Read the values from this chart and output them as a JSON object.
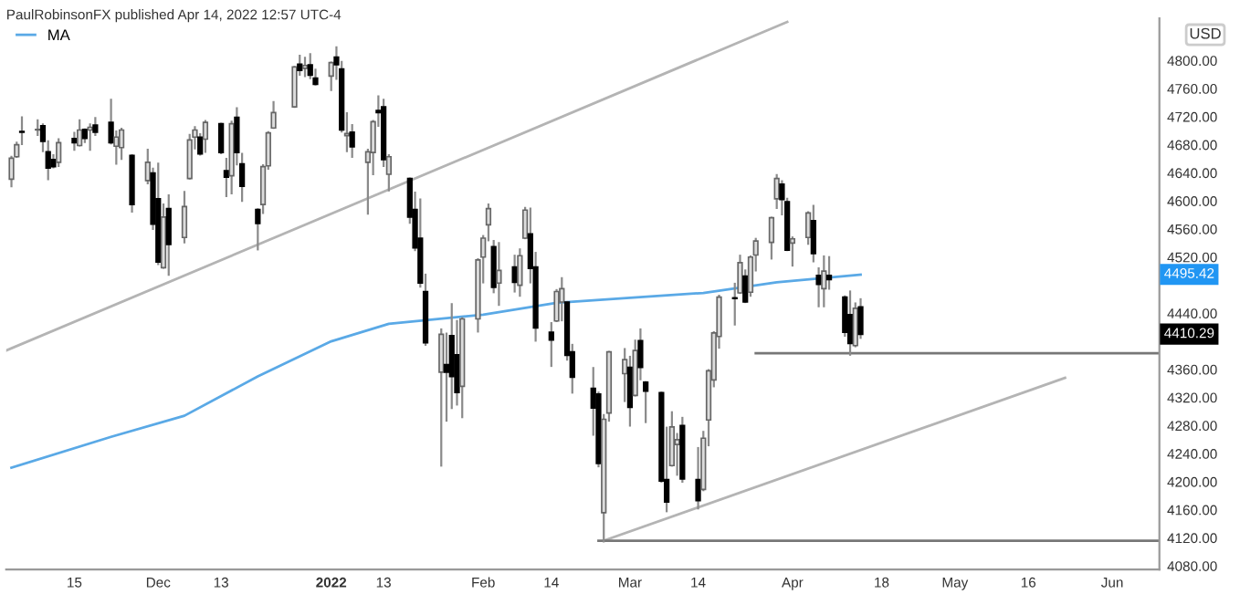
{
  "chart_data": {
    "type": "candlestick",
    "annotations": [
      "PaulRobinsonFX published Apr 14, 2022 12:57 UTC-4",
      "USD",
      {
        "text": "4495.42",
        "y": 4495.42
      },
      {
        "text": "4410.29",
        "y": 4410.29
      }
    ],
    "x": [
      "2021-11-03",
      "2021-11-04",
      "2021-11-05",
      "2021-11-08",
      "2021-11-09",
      "2021-11-10",
      "2021-11-11",
      "2021-11-12",
      "2021-11-15",
      "2021-11-16",
      "2021-11-17",
      "2021-11-18",
      "2021-11-19",
      "2021-11-22",
      "2021-11-23",
      "2021-11-24",
      "2021-11-26",
      "2021-11-29",
      "2021-11-30",
      "2021-12-01",
      "2021-12-02",
      "2021-12-03",
      "2021-12-06",
      "2021-12-07",
      "2021-12-08",
      "2021-12-09",
      "2021-12-10",
      "2021-12-13",
      "2021-12-14",
      "2021-12-15",
      "2021-12-16",
      "2021-12-17",
      "2021-12-20",
      "2021-12-21",
      "2021-12-22",
      "2021-12-23",
      "2021-12-27",
      "2021-12-28",
      "2021-12-29",
      "2021-12-30",
      "2021-12-31",
      "2022-01-03",
      "2022-01-04",
      "2022-01-05",
      "2022-01-06",
      "2022-01-07",
      "2022-01-10",
      "2022-01-11",
      "2022-01-12",
      "2022-01-13",
      "2022-01-14",
      "2022-01-18",
      "2022-01-19",
      "2022-01-20",
      "2022-01-21",
      "2022-01-24",
      "2022-01-25",
      "2022-01-26",
      "2022-01-27",
      "2022-01-28",
      "2022-01-31",
      "2022-02-01",
      "2022-02-02",
      "2022-02-03",
      "2022-02-04",
      "2022-02-07",
      "2022-02-08",
      "2022-02-09",
      "2022-02-10",
      "2022-02-11",
      "2022-02-14",
      "2022-02-15",
      "2022-02-16",
      "2022-02-17",
      "2022-02-18",
      "2022-02-22",
      "2022-02-23",
      "2022-02-24",
      "2022-02-25",
      "2022-02-28",
      "2022-03-01",
      "2022-03-02",
      "2022-03-03",
      "2022-03-04",
      "2022-03-07",
      "2022-03-08",
      "2022-03-09",
      "2022-03-10",
      "2022-03-11",
      "2022-03-14",
      "2022-03-15",
      "2022-03-16",
      "2022-03-17",
      "2022-03-18",
      "2022-03-21",
      "2022-03-22",
      "2022-03-23",
      "2022-03-24",
      "2022-03-25",
      "2022-03-28",
      "2022-03-29",
      "2022-03-30",
      "2022-03-31",
      "2022-04-01",
      "2022-04-04",
      "2022-04-05",
      "2022-04-06",
      "2022-04-07",
      "2022-04-08",
      "2022-04-11",
      "2022-04-12",
      "2022-04-13",
      "2022-04-14"
    ],
    "ohlc": [
      [
        4631,
        4663,
        4621,
        4661
      ],
      [
        4663,
        4683,
        4663,
        4680
      ],
      [
        4699,
        4719,
        4681,
        4698
      ],
      [
        4701,
        4715,
        4694,
        4702
      ],
      [
        4707,
        4709,
        4671,
        4685
      ],
      [
        4670,
        4685,
        4631,
        4647
      ],
      [
        4659,
        4665,
        4648,
        4649
      ],
      [
        4655,
        4688,
        4650,
        4683
      ],
      [
        4689,
        4697,
        4673,
        4683
      ],
      [
        4679,
        4715,
        4679,
        4701
      ],
      [
        4702,
        4702,
        4684,
        4689
      ],
      [
        4701,
        4709,
        4673,
        4705
      ],
      [
        4708,
        4718,
        4694,
        4698
      ],
      [
        4712,
        4744,
        4682,
        4683
      ],
      [
        4678,
        4699,
        4653,
        4691
      ],
      [
        4676,
        4703,
        4660,
        4701
      ],
      [
        4665,
        4665,
        4585,
        4595
      ],
      [
        4629,
        4673,
        4625,
        4655
      ],
      [
        4640,
        4646,
        4560,
        4567
      ],
      [
        4603,
        4653,
        4510,
        4513
      ],
      [
        4505,
        4595,
        4505,
        4577
      ],
      [
        4589,
        4608,
        4495,
        4538
      ],
      [
        4548,
        4613,
        4541,
        4592
      ],
      [
        4632,
        4694,
        4632,
        4687
      ],
      [
        4691,
        4705,
        4675,
        4701
      ],
      [
        4691,
        4695,
        4666,
        4667
      ],
      [
        4688,
        4714,
        4670,
        4712
      ],
      [
        4710,
        4710,
        4668,
        4669
      ],
      [
        4643,
        4660,
        4607,
        4634
      ],
      [
        4636,
        4713,
        4611,
        4710
      ],
      [
        4719,
        4732,
        4652,
        4669
      ],
      [
        4653,
        4667,
        4600,
        4621
      ],
      [
        4588,
        4588,
        4531,
        4568
      ],
      [
        4595,
        4651,
        4583,
        4649
      ],
      [
        4650,
        4698,
        4646,
        4697
      ],
      [
        4704,
        4741,
        4704,
        4726
      ],
      [
        4734,
        4791,
        4734,
        4791
      ],
      [
        4795,
        4807,
        4780,
        4786
      ],
      [
        4789,
        4804,
        4778,
        4793
      ],
      [
        4794,
        4809,
        4775,
        4779
      ],
      [
        4775,
        4787,
        4766,
        4766
      ],
      [
        4778,
        4797,
        4758,
        4797
      ],
      [
        4805,
        4819,
        4774,
        4794
      ],
      [
        4788,
        4798,
        4699,
        4701
      ],
      [
        4693,
        4725,
        4671,
        4696
      ],
      [
        4698,
        4708,
        4663,
        4677
      ],
      [
        4655,
        4673,
        4582,
        4670
      ],
      [
        4669,
        4714,
        4638,
        4713
      ],
      [
        4729,
        4749,
        4707,
        4726
      ],
      [
        4734,
        4744,
        4650,
        4659
      ],
      [
        4638,
        4665,
        4615,
        4663
      ],
      [
        4632,
        4632,
        4569,
        4577
      ],
      [
        4588,
        4612,
        4530,
        4533
      ],
      [
        4547,
        4602,
        4478,
        4483
      ],
      [
        4471,
        4495,
        4395,
        4398
      ],
      [
        4356,
        4417,
        4223,
        4410
      ],
      [
        4367,
        4411,
        4287,
        4356
      ],
      [
        4408,
        4453,
        4305,
        4350
      ],
      [
        4381,
        4429,
        4310,
        4327
      ],
      [
        4336,
        4433,
        4292,
        4432
      ],
      [
        4432,
        4517,
        4414,
        4516
      ],
      [
        4520,
        4550,
        4484,
        4547
      ],
      [
        4566,
        4595,
        4544,
        4589
      ],
      [
        4535,
        4543,
        4470,
        4477
      ],
      [
        4483,
        4540,
        4452,
        4501
      ],
      [
        4506,
        4522,
        4471,
        4484
      ],
      [
        4480,
        4531,
        4465,
        4522
      ],
      [
        4547,
        4590,
        4547,
        4587
      ],
      [
        4553,
        4589,
        4484,
        4504
      ],
      [
        4506,
        4526,
        4401,
        4419
      ],
      [
        4413,
        4426,
        4365,
        4402
      ],
      [
        4429,
        4473,
        4429,
        4471
      ],
      [
        4456,
        4490,
        4430,
        4475
      ],
      [
        4456,
        4456,
        4374,
        4380
      ],
      [
        4385,
        4395,
        4327,
        4349
      ],
      [
        4333,
        4362,
        4267,
        4305
      ],
      [
        4325,
        4327,
        4222,
        4226
      ],
      [
        4156,
        4295,
        4115,
        4289
      ],
      [
        4298,
        4385,
        4287,
        4385
      ],
      [
        4354,
        4389,
        4315,
        4374
      ],
      [
        4363,
        4378,
        4280,
        4306
      ],
      [
        4323,
        4401,
        4323,
        4387
      ],
      [
        4401,
        4417,
        4346,
        4363
      ],
      [
        4342,
        4342,
        4285,
        4329
      ],
      [
        4327,
        4327,
        4200,
        4201
      ],
      [
        4203,
        4277,
        4158,
        4171
      ],
      [
        4223,
        4299,
        4223,
        4278
      ],
      [
        4253,
        4268,
        4210,
        4260
      ],
      [
        4280,
        4291,
        4200,
        4204
      ],
      [
        4203,
        4248,
        4162,
        4173
      ],
      [
        4189,
        4271,
        4188,
        4262
      ],
      [
        4288,
        4359,
        4252,
        4358
      ],
      [
        4345,
        4413,
        4336,
        4412
      ],
      [
        4407,
        4465,
        4391,
        4463
      ],
      [
        4462,
        4482,
        4424,
        4461
      ],
      [
        4469,
        4522,
        4469,
        4512
      ],
      [
        4493,
        4501,
        4456,
        4456
      ],
      [
        4470,
        4521,
        4465,
        4520
      ],
      [
        4523,
        4546,
        4501,
        4543
      ],
      [
        4541,
        4576,
        4518,
        4576
      ],
      [
        4603,
        4637,
        4590,
        4632
      ],
      [
        4624,
        4628,
        4581,
        4602
      ],
      [
        4599,
        4603,
        4530,
        4530
      ],
      [
        4540,
        4548,
        4508,
        4546
      ],
      [
        4548,
        4584,
        4539,
        4583
      ],
      [
        4572,
        4593,
        4514,
        4525
      ],
      [
        4494,
        4504,
        4450,
        4481
      ],
      [
        4475,
        4521,
        4450,
        4500
      ],
      [
        4494,
        4520,
        4475,
        4488
      ],
      [
        4463,
        4464,
        4408,
        4413
      ],
      [
        4438,
        4471,
        4381,
        4397
      ],
      [
        4394,
        4454,
        4393,
        4447
      ],
      [
        4449,
        4460,
        4405,
        4410
      ]
    ],
    "series": [
      {
        "name": "MA",
        "type": "line",
        "color": "#5aa9e6",
        "x": [
          "2021-11-03",
          "2021-11-22",
          "2021-12-06",
          "2021-12-20",
          "2022-01-03",
          "2022-01-14",
          "2022-02-01",
          "2022-02-15",
          "2022-03-01",
          "2022-03-15",
          "2022-03-29",
          "2022-04-14"
        ],
        "values": [
          4220,
          4264,
          4294,
          4350,
          4400,
          4425,
          4438,
          4455,
          4462,
          4469,
          4484,
          4495
        ]
      },
      {
        "type": "line",
        "color": "#b4b4b4",
        "x": [
          "2021-11-02",
          "2022-03-31"
        ],
        "values": [
          4387,
          4855
        ]
      },
      {
        "type": "line",
        "color": "#b4b4b4",
        "x": [
          "2022-02-24",
          "2022-05-23"
        ],
        "values": [
          4116,
          4348
        ]
      },
      {
        "type": "line",
        "color": "#777777",
        "x": [
          "2022-03-25",
          "2022-06-10"
        ],
        "values": [
          4383,
          4383
        ]
      },
      {
        "type": "line",
        "color": "#777777",
        "x": [
          "2022-02-23",
          "2022-06-10"
        ],
        "values": [
          4116,
          4116
        ]
      }
    ],
    "xlim": [
      "2021-11-02",
      "2022-06-10"
    ],
    "xticks": [
      {
        "value": "2021-11-15",
        "label": "15"
      },
      {
        "value": "2021-12-01",
        "label": "Dec"
      },
      {
        "value": "2021-12-13",
        "label": "13"
      },
      {
        "value": "2022-01-03",
        "label": "2022"
      },
      {
        "value": "2022-01-13",
        "label": "13"
      },
      {
        "value": "2022-02-01",
        "label": "Feb"
      },
      {
        "value": "2022-02-14",
        "label": "14"
      },
      {
        "value": "2022-03-01",
        "label": "Mar"
      },
      {
        "value": "2022-03-14",
        "label": "14"
      },
      {
        "value": "2022-04-01",
        "label": "Apr"
      },
      {
        "value": "2022-04-18",
        "label": "18"
      },
      {
        "value": "2022-05-02",
        "label": "May"
      },
      {
        "value": "2022-05-16",
        "label": "16"
      },
      {
        "value": "2022-06-01",
        "label": "Jun"
      }
    ],
    "ylim": [
      4075,
      4860
    ],
    "yticks": [
      {
        "value": 4080,
        "label": "4080.00"
      },
      {
        "value": 4120,
        "label": "4120.00"
      },
      {
        "value": 4160,
        "label": "4160.00"
      },
      {
        "value": 4200,
        "label": "4200.00"
      },
      {
        "value": 4240,
        "label": "4240.00"
      },
      {
        "value": 4280,
        "label": "4280.00"
      },
      {
        "value": 4320,
        "label": "4320.00"
      },
      {
        "value": 4360,
        "label": "4360.00"
      },
      {
        "value": 4440,
        "label": "4440.00"
      },
      {
        "value": 4520,
        "label": "4520.00"
      },
      {
        "value": 4560,
        "label": "4560.00"
      },
      {
        "value": 4600,
        "label": "4600.00"
      },
      {
        "value": 4640,
        "label": "4640.00"
      },
      {
        "value": 4680,
        "label": "4680.00"
      },
      {
        "value": 4720,
        "label": "4720.00"
      },
      {
        "value": 4760,
        "label": "4760.00"
      },
      {
        "value": 4800,
        "label": "4800.00"
      }
    ],
    "legend": "top left"
  }
}
